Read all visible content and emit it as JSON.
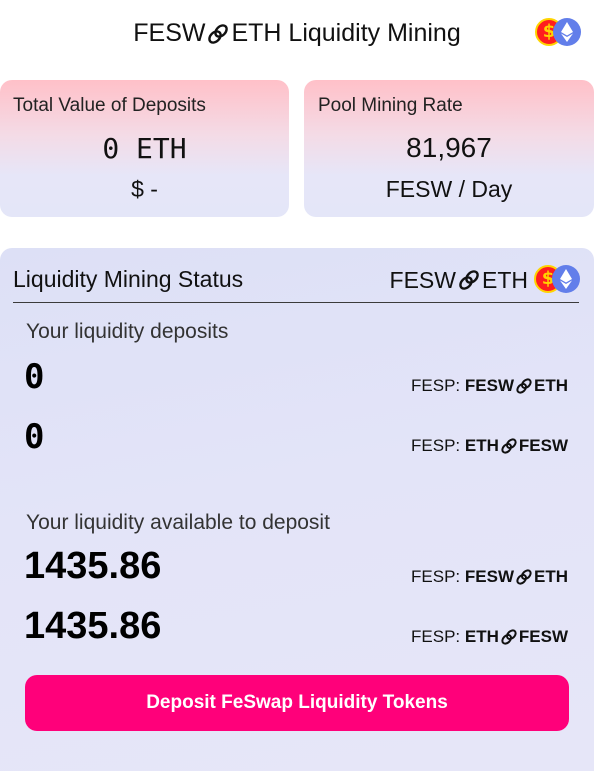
{
  "header": {
    "title_left": "FESW",
    "title_right": "ETH Liquidity Mining",
    "coin_fesw_icon": "fesw-coin-icon",
    "coin_eth_icon": "eth-coin-icon"
  },
  "cards": {
    "deposits": {
      "label": "Total Value of Deposits",
      "value": "0 ETH",
      "sub": "$ -"
    },
    "rate": {
      "label": "Pool Mining Rate",
      "value": "81,967",
      "sub": "FESW / Day"
    }
  },
  "status": {
    "title": "Liquidity Mining Status",
    "pair_left": "FESW",
    "pair_right": "ETH",
    "deposits_label": "Your liquidity deposits",
    "deposit_1": "0",
    "deposit_2": "0",
    "available_label": "Your liquidity available to deposit",
    "available_1": "1435.86",
    "available_2": "1435.86",
    "fesp_prefix": "FESP: ",
    "row1_a": "FESW",
    "row1_b": "ETH",
    "row2_a": "ETH",
    "row2_b": "FESW",
    "button": "Deposit FeSwap Liquidity Tokens"
  },
  "colors": {
    "accent": "#ff007a",
    "fesw_coin": "#ff1e1e",
    "eth_coin": "#627eea"
  }
}
